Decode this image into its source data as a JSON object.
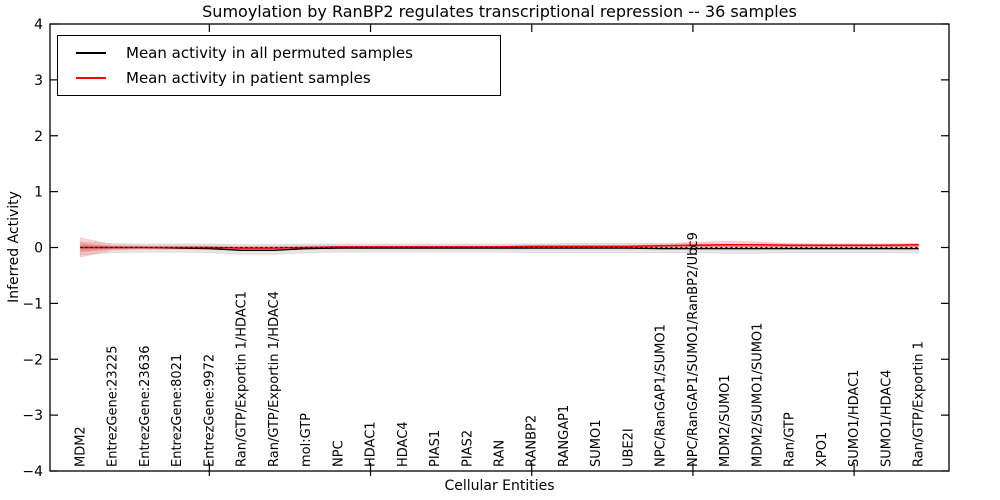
{
  "chart_data": {
    "type": "line",
    "title": "Sumoylation by RanBP2 regulates transcriptional repression -- 36 samples",
    "xlabel": "Cellular Entities",
    "ylabel": "Inferred Activity",
    "ylim": [
      -4,
      4
    ],
    "ytick_values": [
      4,
      3,
      2,
      1,
      0,
      -1,
      -2,
      -3,
      -4
    ],
    "ytick_labels": [
      "4",
      "3",
      "2",
      "1",
      "0",
      "−1",
      "−2",
      "−3",
      "−4"
    ],
    "x_major_tick_indices": [
      4,
      9,
      14,
      19,
      24
    ],
    "grid": false,
    "legend_position": "upper-left",
    "categories": [
      "MDM2",
      "EntrezGene:23225",
      "EntrezGene:23636",
      "EntrezGene:8021",
      "EntrezGene:9972",
      "Ran/GTP/Exportin 1/HDAC1",
      "Ran/GTP/Exportin 1/HDAC4",
      "mol:GTP",
      "NPC",
      "HDAC1",
      "HDAC4",
      "PIAS1",
      "PIAS2",
      "RAN",
      "RANBP2",
      "RANGAP1",
      "SUMO1",
      "UBE2I",
      "NPC/RanGAP1/SUMO1",
      "NPC/RanGAP1/SUMO1/RanBP2/Ubc9",
      "MDM2/SUMO1",
      "MDM2/SUMO1/SUMO1",
      "Ran/GTP",
      "XPO1",
      "SUMO1/HDAC1",
      "SUMO1/HDAC4",
      "Ran/GTP/Exportin 1"
    ],
    "series": [
      {
        "name": "Mean activity in all permuted samples",
        "color": "#000000",
        "band_color": "#999999",
        "values": [
          0.0,
          0.0,
          0.0,
          -0.01,
          -0.02,
          -0.05,
          -0.05,
          -0.02,
          -0.01,
          -0.01,
          -0.01,
          -0.01,
          -0.01,
          -0.01,
          -0.01,
          -0.01,
          -0.01,
          -0.01,
          -0.02,
          -0.02,
          -0.02,
          -0.02,
          -0.02,
          -0.02,
          -0.02,
          -0.02,
          -0.02
        ],
        "band_upper": [
          0.1,
          0.07,
          0.06,
          0.06,
          0.06,
          0.05,
          0.05,
          0.06,
          0.06,
          0.06,
          0.06,
          0.06,
          0.06,
          0.06,
          0.06,
          0.07,
          0.07,
          0.07,
          0.07,
          0.06,
          0.06,
          0.06,
          0.06,
          0.06,
          0.06,
          0.06,
          0.06
        ],
        "band_lower": [
          -0.13,
          -0.09,
          -0.08,
          -0.08,
          -0.09,
          -0.12,
          -0.12,
          -0.09,
          -0.08,
          -0.08,
          -0.08,
          -0.08,
          -0.08,
          -0.08,
          -0.09,
          -0.09,
          -0.09,
          -0.09,
          -0.09,
          -0.09,
          -0.1,
          -0.1,
          -0.09,
          -0.09,
          -0.09,
          -0.09,
          -0.1
        ]
      },
      {
        "name": "Mean activity in patient samples",
        "color": "#ff0000",
        "band_color": "#ff4444",
        "values": [
          0.0,
          0.0,
          0.0,
          0.0,
          0.0,
          -0.01,
          -0.01,
          0.0,
          0.01,
          0.01,
          0.01,
          0.01,
          0.01,
          0.01,
          0.02,
          0.02,
          0.02,
          0.02,
          0.03,
          0.04,
          0.05,
          0.05,
          0.04,
          0.04,
          0.04,
          0.04,
          0.05
        ],
        "band_upper": [
          0.17,
          0.05,
          0.03,
          0.03,
          0.03,
          0.02,
          0.02,
          0.03,
          0.03,
          0.03,
          0.03,
          0.03,
          0.03,
          0.03,
          0.04,
          0.04,
          0.04,
          0.04,
          0.06,
          0.09,
          0.11,
          0.1,
          0.07,
          0.06,
          0.06,
          0.06,
          0.07
        ],
        "band_lower": [
          -0.17,
          -0.05,
          -0.03,
          -0.03,
          -0.03,
          -0.04,
          -0.04,
          -0.03,
          -0.02,
          -0.01,
          -0.01,
          -0.01,
          -0.01,
          -0.01,
          0.0,
          0.0,
          0.0,
          0.0,
          0.0,
          0.01,
          0.01,
          0.01,
          0.01,
          0.01,
          0.01,
          0.01,
          0.02
        ]
      }
    ],
    "zero_line": {
      "value": 0,
      "style": "dashed",
      "color": "#000000"
    }
  }
}
